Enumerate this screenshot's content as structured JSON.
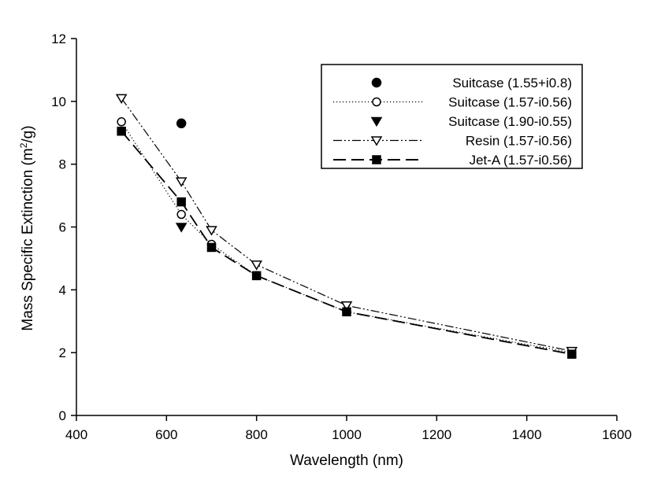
{
  "chart_data": {
    "type": "line",
    "xlabel": "Wavelength (nm)",
    "ylabel_parts": [
      "Mass Specific Extinction (m",
      "2",
      "/g)"
    ],
    "xlim": [
      400,
      1600
    ],
    "ylim": [
      0,
      12
    ],
    "xticks": [
      400,
      600,
      800,
      1000,
      1200,
      1400,
      1600
    ],
    "yticks": [
      0,
      2,
      4,
      6,
      8,
      10,
      12
    ],
    "grid": false,
    "legend_position": "top-right",
    "series": [
      {
        "name": "Suitcase (1.55+i0.8)",
        "marker": "filled-circle",
        "line": "none",
        "x": [
          633
        ],
        "y": [
          9.3
        ]
      },
      {
        "name": "Suitcase (1.57-i0.56)",
        "marker": "open-circle",
        "line": "dotted",
        "x": [
          500,
          633,
          700,
          800,
          1000,
          1500
        ],
        "y": [
          9.35,
          6.4,
          5.45,
          4.45,
          3.3,
          2.0
        ]
      },
      {
        "name": "Suitcase (1.90-i0.55)",
        "marker": "filled-triangle-down",
        "line": "none",
        "x": [
          633
        ],
        "y": [
          6.0
        ]
      },
      {
        "name": "Resin (1.57-i0.56)",
        "marker": "open-triangle-down",
        "line": "dash-dot-dot",
        "x": [
          500,
          633,
          700,
          800,
          1000,
          1500
        ],
        "y": [
          10.1,
          7.45,
          5.9,
          4.8,
          3.5,
          2.05
        ]
      },
      {
        "name": "Jet-A (1.57-i0.56)",
        "marker": "filled-square",
        "line": "long-dash",
        "x": [
          500,
          633,
          700,
          800,
          1000,
          1500
        ],
        "y": [
          9.05,
          6.8,
          5.35,
          4.45,
          3.3,
          1.95
        ]
      }
    ]
  }
}
